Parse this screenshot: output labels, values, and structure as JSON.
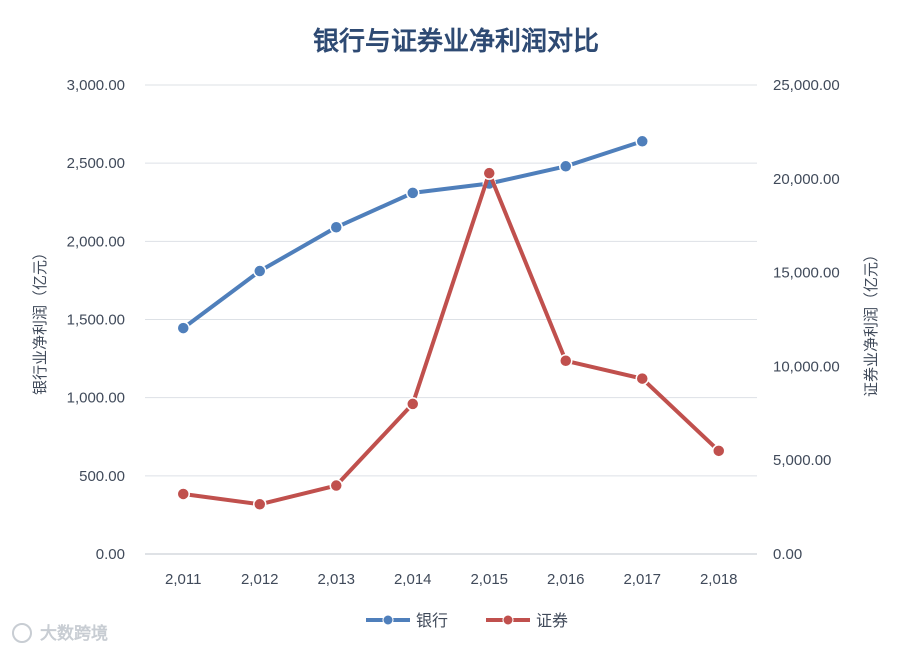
{
  "chart_data": {
    "type": "line",
    "title": "银行与证券业净利润对比",
    "categories": [
      "2,011",
      "2,012",
      "2,013",
      "2,014",
      "2,015",
      "2,016",
      "2,017",
      "2,018"
    ],
    "ylabel_left": "银行业净利润（亿元）",
    "ylabel_right": "证券业净利润（亿元）",
    "ylim_left": [
      0,
      3000
    ],
    "ylim_right": [
      0,
      25000
    ],
    "yticks_left": [
      "0.00",
      "500.00",
      "1,000.00",
      "1,500.00",
      "2,000.00",
      "2,500.00",
      "3,000.00"
    ],
    "yticks_right": [
      "0.00",
      "5,000.00",
      "10,000.00",
      "15,000.00",
      "20,000.00",
      "25,000.00"
    ],
    "grid": true,
    "legend_position": "bottom",
    "series": [
      {
        "name": "银行",
        "axis": "left",
        "color": "#4f7fbb",
        "values": [
          1445,
          1810,
          2090,
          2310,
          2370,
          2480,
          2640,
          null
        ]
      },
      {
        "name": "证券",
        "axis": "right",
        "color": "#c0504d",
        "values": [
          3200,
          2650,
          3650,
          8000,
          20300,
          10300,
          9350,
          5500
        ]
      }
    ]
  },
  "watermark": "大数跨境"
}
